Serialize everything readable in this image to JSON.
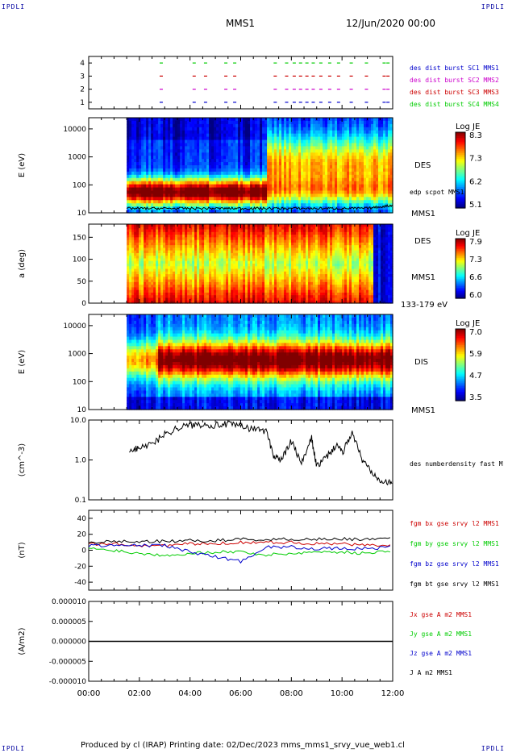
{
  "header": {
    "corner_left": "IPDLI",
    "corner_right": "IPDLI",
    "spacecraft": "MMS1",
    "date": "12/Jun/2020 00:00"
  },
  "footer": {
    "text": "Produced by cl (IRAP)   Printing date: 02/Dec/2023   mms_mms1_srvy_vue_web1.cl",
    "corner_left": "IPDLI",
    "corner_right": "IPDLI"
  },
  "time_axis": {
    "ticks": [
      "00:00",
      "02:00",
      "04:00",
      "06:00",
      "08:00",
      "10:00",
      "12:00"
    ],
    "range_hours": [
      0,
      12
    ]
  },
  "colors": {
    "mms1": "#0000cc",
    "mms2": "#cc00cc",
    "mms3": "#cc0000",
    "mms4": "#00cc00",
    "bx": "#cc0000",
    "by": "#00cc00",
    "bz": "#0000cc",
    "bt": "#000000"
  },
  "chart_data": [
    {
      "type": "scatter",
      "panel": "burst",
      "yticks": [
        "1",
        "2",
        "3",
        "4"
      ],
      "ylim": [
        0.5,
        4.5
      ],
      "legend": [
        {
          "label": "des dist burst SC1 MMS1",
          "color": "#0000cc"
        },
        {
          "label": "des dist burst SC2 MMS2",
          "color": "#cc00cc"
        },
        {
          "label": "des dist burst SC3 MMS3",
          "color": "#cc0000"
        },
        {
          "label": "des dist burst SC4 MMS4",
          "color": "#00cc00"
        }
      ],
      "intervals_hours": [
        2.8,
        4.1,
        4.55,
        5.35,
        5.7,
        7.3,
        7.75,
        8.05,
        8.3,
        8.55,
        8.8,
        9.1,
        9.45,
        9.8,
        10.3,
        10.9,
        11.6,
        11.75
      ]
    },
    {
      "type": "heatmap",
      "panel": "des_energy",
      "ylabel": "E (eV)",
      "yticks": [
        "10",
        "100",
        "1000",
        "10000"
      ],
      "ylim_log": [
        1,
        4.4
      ],
      "label": "DES",
      "overlay": "edp scpot MMS1",
      "sc_label": "MMS1",
      "colorbar": {
        "title": "Log JE",
        "ticks": [
          "8.3",
          "7.3",
          "6.2",
          "5.1"
        ],
        "range": [
          5.1,
          8.3
        ]
      },
      "data_start_hours": 1.5
    },
    {
      "type": "heatmap",
      "panel": "des_pitch",
      "ylabel": "a (deg)",
      "yticks": [
        "0",
        "50",
        "100",
        "150"
      ],
      "ylim": [
        0,
        180
      ],
      "label": "DES",
      "sc_label": "MMS1",
      "energy_label": "133-179 eV",
      "colorbar": {
        "title": "Log JE",
        "ticks": [
          "7.9",
          "7.3",
          "6.6",
          "6.0"
        ],
        "range": [
          6.0,
          7.9
        ]
      },
      "data_start_hours": 1.5
    },
    {
      "type": "heatmap",
      "panel": "dis_energy",
      "ylabel": "E (eV)",
      "yticks": [
        "10",
        "100",
        "1000",
        "10000"
      ],
      "ylim_log": [
        1,
        4.4
      ],
      "label": "DIS",
      "sc_label": "MMS1",
      "colorbar": {
        "title": "Log JE",
        "ticks": [
          "7.0",
          "5.9",
          "4.7",
          "3.5"
        ],
        "range": [
          3.5,
          7.0
        ]
      },
      "data_start_hours": 1.5
    },
    {
      "type": "line",
      "panel": "density",
      "ylabel": "(cm^-3)",
      "yticks": [
        "0.1",
        "1.0",
        "10.0"
      ],
      "ylim_log": [
        -1,
        1
      ],
      "legend": [
        "des numberdensity fast M"
      ],
      "x": [
        1.6,
        2.0,
        2.5,
        3.0,
        3.5,
        4.0,
        4.5,
        5.0,
        5.5,
        6.0,
        6.5,
        7.0,
        7.3,
        7.6,
        8.0,
        8.4,
        8.8,
        9.0,
        9.4,
        9.8,
        10.0,
        10.4,
        10.8,
        11.2,
        11.6,
        12.0
      ],
      "y": [
        1.5,
        2.2,
        2.5,
        4.5,
        6.5,
        7.5,
        8.0,
        7.5,
        8.0,
        7.0,
        6.0,
        5.5,
        1.3,
        1.0,
        3.0,
        0.8,
        3.5,
        0.7,
        1.2,
        2.5,
        1.5,
        5.0,
        1.0,
        0.5,
        0.3,
        0.25
      ]
    },
    {
      "type": "line",
      "panel": "fgm",
      "ylabel": "(nT)",
      "yticks": [
        "-40",
        "-20",
        "0",
        "20",
        "40"
      ],
      "ylim": [
        -50,
        50
      ],
      "legend": [
        "fgm bx gse srvy l2 MMS1",
        "fgm by gse srvy l2 MMS1",
        "fgm bz gse srvy l2 MMS1",
        "fgm bt gse srvy l2 MMS1"
      ],
      "x": [
        0,
        1,
        2,
        3,
        4,
        5,
        6,
        7,
        8,
        9,
        10,
        11,
        12
      ],
      "series": [
        {
          "name": "fgm bx gse srvy l2 MMS1",
          "values": [
            8,
            8,
            6,
            6,
            8,
            8,
            10,
            10,
            10,
            8,
            8,
            6,
            6
          ]
        },
        {
          "name": "fgm by gse srvy l2 MMS1",
          "values": [
            2,
            0,
            -4,
            -6,
            -4,
            -2,
            -2,
            -6,
            -4,
            -2,
            -2,
            -4,
            0
          ]
        },
        {
          "name": "fgm bz gse srvy l2 MMS1",
          "values": [
            6,
            6,
            6,
            6,
            -2,
            -8,
            -14,
            4,
            4,
            2,
            2,
            2,
            4
          ]
        },
        {
          "name": "fgm bt gse srvy l2 MMS1",
          "values": [
            10,
            11,
            11,
            11,
            12,
            12,
            14,
            13,
            14,
            14,
            14,
            14,
            14
          ]
        }
      ]
    },
    {
      "type": "line",
      "panel": "current",
      "ylabel": "(A/m2)",
      "yticks": [
        "-0.000010",
        "-0.000005",
        "0.000000",
        "0.000005",
        "0.000010"
      ],
      "ylim": [
        -1e-05,
        1e-05
      ],
      "legend": [
        "Jx gse A m2 MMS1",
        "Jy gse A m2 MMS1",
        "Jz gse A m2 MMS1",
        "J A m2 MMS1"
      ],
      "x": [
        0,
        12
      ],
      "series": [
        {
          "name": "J A m2 MMS1",
          "values": [
            0,
            0
          ]
        }
      ]
    }
  ]
}
